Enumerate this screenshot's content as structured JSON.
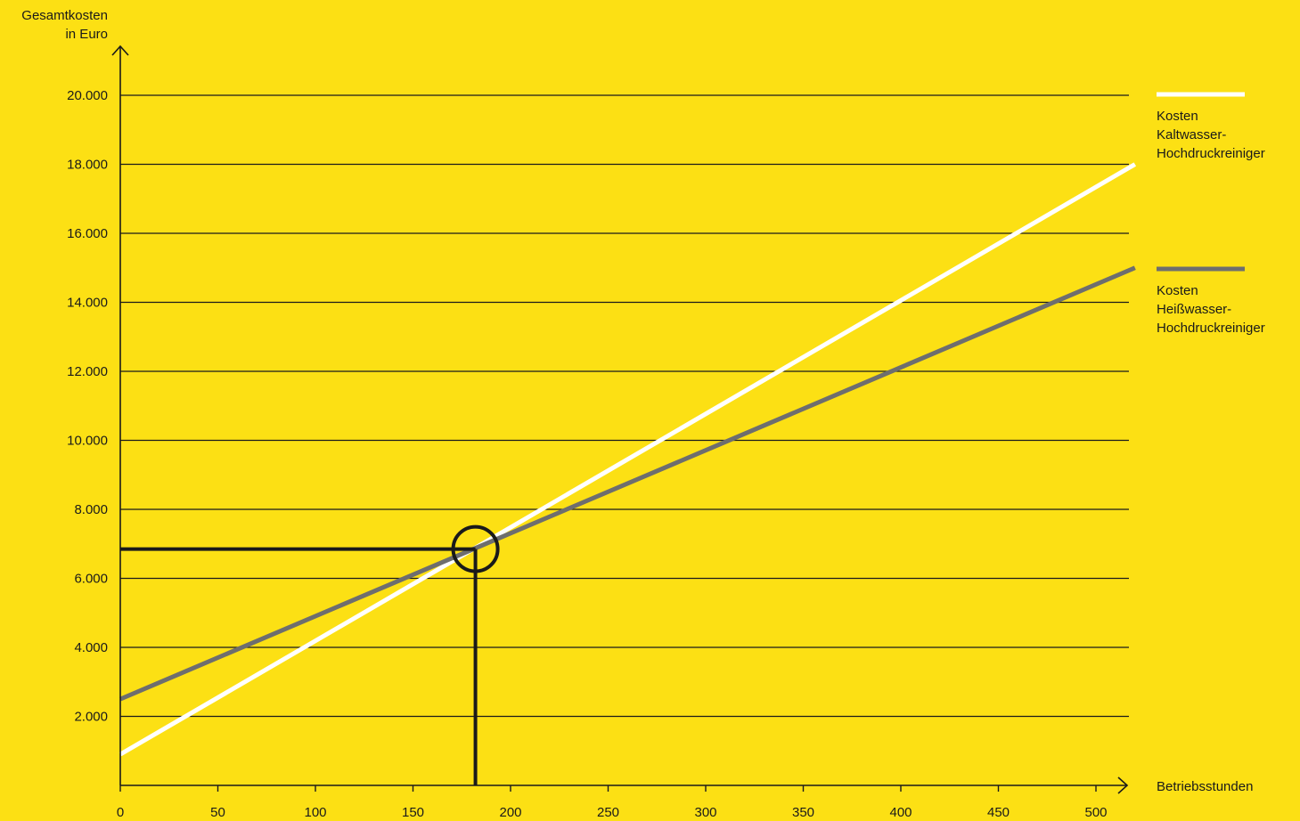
{
  "colors": {
    "background": "#FCE014",
    "axis": "#1a1a1a",
    "grid": "#1a1a1a",
    "marker": "#1a1a1a"
  },
  "chart_data": {
    "type": "line",
    "title": "",
    "ylabel_lines": [
      "Gesamtkosten",
      "in Euro"
    ],
    "xlabel": "Betriebsstunden",
    "xlim": [
      0,
      520
    ],
    "ylim": [
      0,
      21000
    ],
    "xticks": [
      0,
      50,
      100,
      150,
      200,
      250,
      300,
      350,
      400,
      450,
      500
    ],
    "xtick_labels": [
      "0",
      "50",
      "100",
      "150",
      "200",
      "250",
      "300",
      "350",
      "400",
      "450",
      "500"
    ],
    "yticks": [
      2000,
      4000,
      6000,
      8000,
      10000,
      12000,
      14000,
      16000,
      18000,
      20000
    ],
    "ytick_labels": [
      "2.000",
      "4.000",
      "6.000",
      "8.000",
      "10.000",
      "12.000",
      "14.000",
      "16.000",
      "18.000",
      "20.000"
    ],
    "grid": true,
    "legend_position": "right",
    "series": [
      {
        "name_lines": [
          "Kosten",
          "Kaltwasser-",
          "Hochdruckreiniger"
        ],
        "color": "#FFFFFF",
        "points": [
          [
            0,
            900
          ],
          [
            520,
            18000
          ]
        ]
      },
      {
        "name_lines": [
          "Kosten",
          "Heißwasser-",
          "Hochdruckreiniger"
        ],
        "color": "#6E6E6E",
        "points": [
          [
            0,
            2500
          ],
          [
            520,
            15000
          ]
        ]
      }
    ],
    "annotation": {
      "type": "break-even-marker",
      "x": 182,
      "y": 6850
    }
  }
}
